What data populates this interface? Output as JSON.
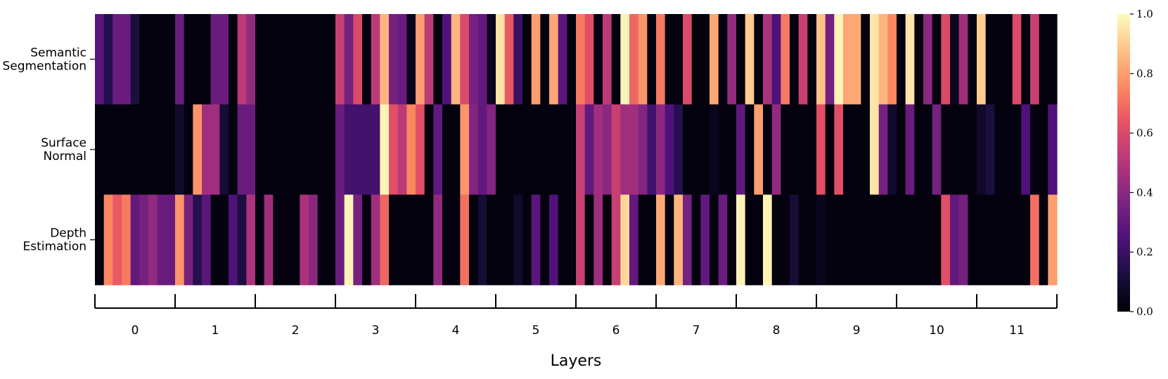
{
  "chart_data": {
    "type": "heatmap",
    "colormap": "magma",
    "xlabel": "Layers",
    "rows": [
      "Semantic Segmentation",
      "Surface Normal",
      "Depth Estimation"
    ],
    "row_label_lines": [
      [
        "Semantic",
        "Segmentation"
      ],
      [
        "Surface",
        "Normal"
      ],
      [
        "Depth",
        "Estimation"
      ]
    ],
    "groups": [
      "0",
      "1",
      "2",
      "3",
      "4",
      "5",
      "6",
      "7",
      "8",
      "9",
      "10",
      "11"
    ],
    "columns_per_group": 9,
    "color_range": [
      0.0,
      1.0
    ],
    "colorbar_ticks": [
      "0.0",
      "0.2",
      "0.4",
      "0.6",
      "0.8",
      "1.0"
    ],
    "values": [
      [
        0.28,
        0.15,
        0.32,
        0.32,
        0.12,
        0.02,
        0.02,
        0.02,
        0.02,
        0.32,
        0.02,
        0.02,
        0.02,
        0.32,
        0.32,
        0.02,
        0.52,
        0.42,
        0.02,
        0.02,
        0.02,
        0.02,
        0.02,
        0.02,
        0.02,
        0.02,
        0.02,
        0.55,
        0.35,
        0.6,
        0.02,
        0.52,
        0.85,
        0.35,
        0.32,
        0.05,
        0.8,
        0.52,
        0.02,
        0.25,
        0.85,
        0.6,
        0.35,
        0.3,
        0.05,
        0.95,
        0.65,
        0.2,
        0.02,
        0.8,
        0.02,
        0.82,
        0.28,
        0.02,
        0.72,
        0.62,
        0.02,
        0.52,
        0.02,
        0.98,
        0.68,
        0.78,
        0.02,
        0.72,
        0.02,
        0.02,
        0.6,
        0.02,
        0.02,
        0.82,
        0.02,
        0.42,
        0.02,
        0.9,
        0.02,
        0.48,
        0.25,
        0.72,
        0.02,
        0.55,
        0.02,
        0.88,
        0.35,
        0.98,
        0.82,
        0.82,
        0.02,
        0.95,
        0.85,
        0.75,
        0.02,
        0.95,
        0.02,
        0.4,
        0.02,
        0.6,
        0.05,
        0.45,
        0.02,
        0.9,
        0.02,
        0.02,
        0.02,
        0.6,
        0.02,
        0.55,
        0.02,
        0.02
      ],
      [
        0.02,
        0.02,
        0.02,
        0.02,
        0.02,
        0.02,
        0.02,
        0.02,
        0.02,
        0.08,
        0.02,
        0.78,
        0.45,
        0.45,
        0.1,
        0.02,
        0.32,
        0.32,
        0.02,
        0.02,
        0.02,
        0.02,
        0.02,
        0.02,
        0.02,
        0.02,
        0.02,
        0.32,
        0.22,
        0.22,
        0.22,
        0.22,
        0.98,
        0.62,
        0.52,
        0.75,
        0.62,
        0.02,
        0.3,
        0.02,
        0.02,
        0.78,
        0.38,
        0.3,
        0.38,
        0.02,
        0.02,
        0.02,
        0.02,
        0.02,
        0.02,
        0.02,
        0.02,
        0.02,
        0.55,
        0.3,
        0.45,
        0.4,
        0.55,
        0.45,
        0.45,
        0.38,
        0.22,
        0.4,
        0.25,
        0.15,
        0.02,
        0.02,
        0.02,
        0.05,
        0.02,
        0.02,
        0.3,
        0.02,
        0.8,
        0.02,
        0.42,
        0.02,
        0.02,
        0.02,
        0.02,
        0.62,
        0.02,
        0.62,
        0.02,
        0.02,
        0.02,
        0.95,
        0.35,
        0.08,
        0.02,
        0.32,
        0.02,
        0.02,
        0.35,
        0.02,
        0.02,
        0.02,
        0.02,
        0.08,
        0.12,
        0.02,
        0.02,
        0.02,
        0.25,
        0.02,
        0.02,
        0.25
      ],
      [
        0.02,
        0.75,
        0.65,
        0.72,
        0.3,
        0.35,
        0.42,
        0.32,
        0.32,
        0.78,
        0.35,
        0.15,
        0.28,
        0.02,
        0.02,
        0.25,
        0.12,
        0.48,
        0.02,
        0.45,
        0.02,
        0.02,
        0.02,
        0.48,
        0.4,
        0.02,
        0.02,
        0.32,
        0.98,
        0.35,
        0.02,
        0.45,
        0.68,
        0.02,
        0.02,
        0.02,
        0.02,
        0.02,
        0.42,
        0.02,
        0.02,
        0.7,
        0.02,
        0.1,
        0.02,
        0.02,
        0.02,
        0.08,
        0.02,
        0.28,
        0.02,
        0.25,
        0.02,
        0.02,
        0.55,
        0.02,
        0.45,
        0.02,
        0.55,
        0.92,
        0.3,
        0.02,
        0.02,
        0.82,
        0.02,
        0.85,
        0.35,
        0.02,
        0.3,
        0.02,
        0.32,
        0.02,
        0.98,
        0.02,
        0.02,
        0.98,
        0.02,
        0.02,
        0.1,
        0.02,
        0.02,
        0.05,
        0.02,
        0.02,
        0.02,
        0.02,
        0.02,
        0.02,
        0.02,
        0.02,
        0.02,
        0.02,
        0.02,
        0.02,
        0.02,
        0.62,
        0.3,
        0.35,
        0.02,
        0.02,
        0.02,
        0.02,
        0.02,
        0.02,
        0.02,
        0.7,
        0.02,
        0.8
      ]
    ]
  }
}
